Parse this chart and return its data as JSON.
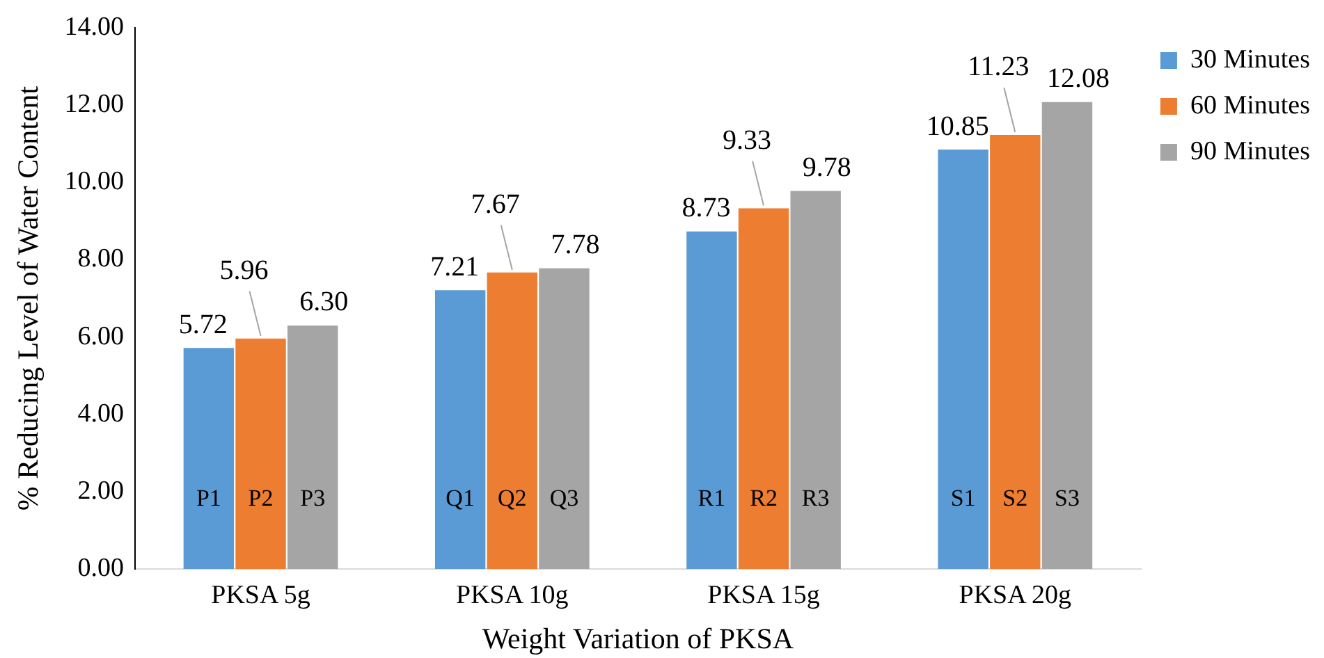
{
  "chart_data": {
    "type": "bar",
    "xlabel": "Weight Variation of PKSA",
    "ylabel": "% Reducing Level of Water Content",
    "categories": [
      "PKSA 5g",
      "PKSA 10g",
      "PKSA 15g",
      "PKSA 20g"
    ],
    "series": [
      {
        "name": "30 Minutes",
        "color": "#5b9bd5",
        "values": [
          5.72,
          7.21,
          8.73,
          10.85
        ],
        "value_labels": [
          "5.72",
          "7.21",
          "8.73",
          "10.85"
        ]
      },
      {
        "name": "60 Minutes",
        "color": "#ed7d31",
        "values": [
          5.96,
          7.67,
          9.33,
          11.23
        ],
        "value_labels": [
          "5.96",
          "7.67",
          "9.33",
          "11.23"
        ]
      },
      {
        "name": "90 Minutes",
        "color": "#a5a5a5",
        "values": [
          6.3,
          7.78,
          9.78,
          12.08
        ],
        "value_labels": [
          "6.30",
          "7.78",
          "9.78",
          "12.08"
        ]
      }
    ],
    "annotations": [
      "P1",
      "P2",
      "P3",
      "Q1",
      "Q2",
      "Q3",
      "R1",
      "R2",
      "R3",
      "S1",
      "S2",
      "S3"
    ],
    "ylim": [
      0,
      14
    ],
    "yticks": [
      {
        "value": 0,
        "label": "0.00"
      },
      {
        "value": 2,
        "label": "2.00"
      },
      {
        "value": 4,
        "label": "4.00"
      },
      {
        "value": 6,
        "label": "6.00"
      },
      {
        "value": 8,
        "label": "8.00"
      },
      {
        "value": 10,
        "label": "10.00"
      },
      {
        "value": 12,
        "label": "12.00"
      },
      {
        "value": 14,
        "label": "14.00"
      }
    ],
    "grid": false,
    "legend": "top right"
  }
}
